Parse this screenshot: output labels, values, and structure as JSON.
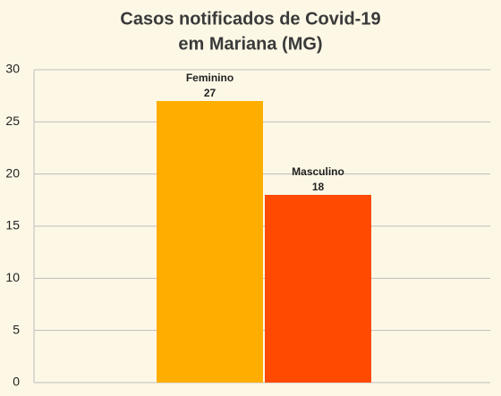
{
  "chart_data": {
    "type": "bar",
    "title": [
      "Casos notificados de Covid-19",
      "em Mariana (MG)"
    ],
    "categories": [
      "Feminino",
      "Masculino"
    ],
    "values": [
      27,
      18
    ],
    "colors": [
      "#ffae00",
      "#ff4a00"
    ],
    "ylim": [
      0,
      30
    ],
    "yticks": [
      0,
      5,
      10,
      15,
      20,
      25,
      30
    ],
    "grid": true
  }
}
